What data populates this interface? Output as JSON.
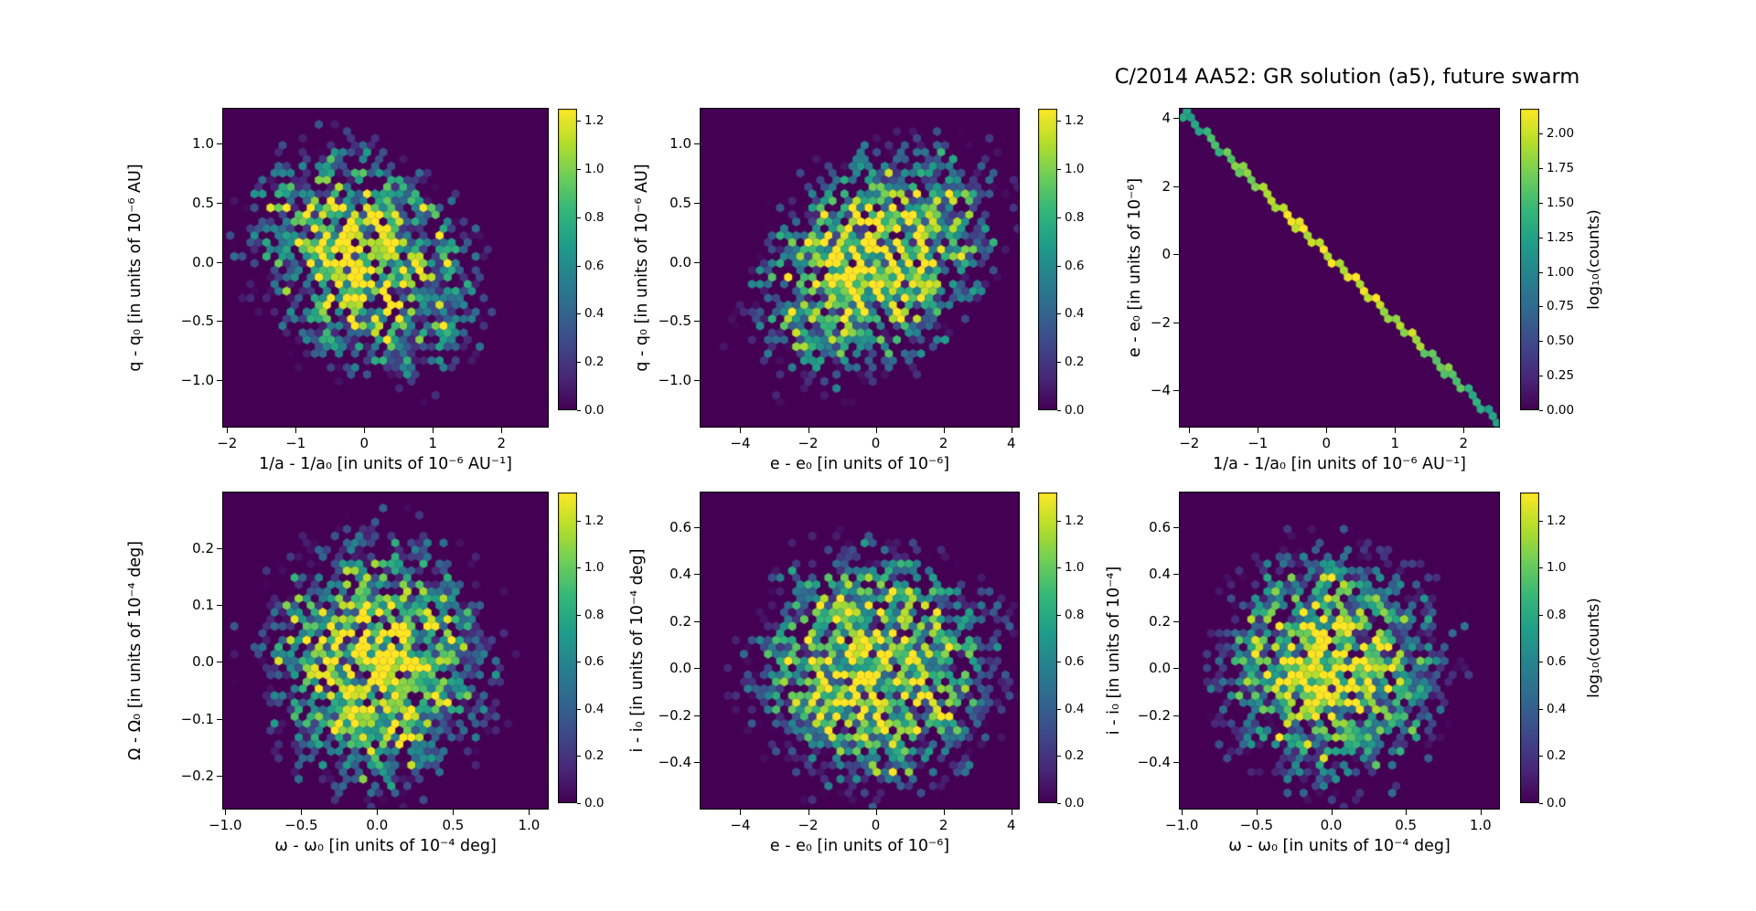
{
  "title": "C/2014 AA52: GR solution (a5), future swarm",
  "colors": {
    "background": "#ffffff",
    "hex_zero_background": "#440154",
    "frame": "#000000",
    "colormap": "viridis",
    "viridis_stops": [
      "#440154",
      "#482878",
      "#3e4989",
      "#31688e",
      "#26828e",
      "#1f9e89",
      "#35b779",
      "#6ece58",
      "#b5de2b",
      "#fde725"
    ]
  },
  "chart_data": [
    {
      "type": "hexbin",
      "xlabel": "1/a - 1/a₀ [in units of 10⁻⁶ AU⁻¹]",
      "ylabel": "q - q₀ [in units of 10⁻⁶ AU]",
      "xlim": [
        -2.07,
        2.69
      ],
      "ylim": [
        -1.4,
        1.3
      ],
      "xticks": {
        "values": [
          -2,
          -1,
          0,
          1,
          2
        ],
        "labels": [
          "−2",
          "−1",
          "0",
          "1",
          "2"
        ]
      },
      "yticks": {
        "values": [
          1.0,
          0.5,
          0.0,
          -0.5,
          -1.0
        ],
        "labels": [
          "1.0",
          "0.5",
          "0.0",
          "−0.5",
          "−1.0"
        ]
      },
      "colorbar": {
        "vmax": 1.25,
        "tick_values": [
          1.2,
          1.0,
          0.8,
          0.6,
          0.4,
          0.2,
          0.0
        ],
        "tick_labels": [
          "1.2",
          "1.0",
          "0.8",
          "0.6",
          "0.4",
          "0.2",
          "0.0"
        ],
        "label": ""
      },
      "distribution": {
        "kind": "gaussian",
        "cx": 0,
        "cy": 0,
        "sx": 0.72,
        "sy": 0.42,
        "rho": -0.28,
        "peak_log10": 1.2,
        "seed": 7
      }
    },
    {
      "type": "hexbin",
      "xlabel": "e - e₀ [in units of 10⁻⁶]",
      "ylabel": "q - q₀ [in units of 10⁻⁶ AU]",
      "xlim": [
        -5.2,
        4.25
      ],
      "ylim": [
        -1.4,
        1.3
      ],
      "xticks": {
        "values": [
          -4,
          -2,
          0,
          2,
          4
        ],
        "labels": [
          "−4",
          "−2",
          "0",
          "2",
          "4"
        ]
      },
      "yticks": {
        "values": [
          1.0,
          0.5,
          0.0,
          -0.5,
          -1.0
        ],
        "labels": [
          "1.0",
          "0.5",
          "0.0",
          "−0.5",
          "−1.0"
        ]
      },
      "colorbar": {
        "vmax": 1.25,
        "tick_values": [
          1.2,
          1.0,
          0.8,
          0.6,
          0.4,
          0.2,
          0.0
        ],
        "tick_labels": [
          "1.2",
          "1.0",
          "0.8",
          "0.6",
          "0.4",
          "0.2",
          "0.0"
        ],
        "label": ""
      },
      "distribution": {
        "kind": "gaussian",
        "cx": 0,
        "cy": 0,
        "sx": 1.55,
        "sy": 0.42,
        "rho": 0.35,
        "peak_log10": 1.2,
        "seed": 21
      }
    },
    {
      "type": "hexbin",
      "xlabel": "1/a - 1/a₀ [in units of 10⁻⁶ AU⁻¹]",
      "ylabel": "e - e₀ [in units of 10⁻⁶]",
      "xlim": [
        -2.15,
        2.53
      ],
      "ylim": [
        -5.1,
        4.3
      ],
      "xticks": {
        "values": [
          -2,
          -1,
          0,
          1,
          2
        ],
        "labels": [
          "−2",
          "−1",
          "0",
          "1",
          "2"
        ]
      },
      "yticks": {
        "values": [
          4,
          2,
          0,
          -2,
          -4
        ],
        "labels": [
          "4",
          "2",
          "0",
          "−2",
          "−4"
        ]
      },
      "colorbar": {
        "vmax": 2.18,
        "tick_values": [
          2.0,
          1.75,
          1.5,
          1.25,
          1.0,
          0.75,
          0.5,
          0.25,
          0.0
        ],
        "tick_labels": [
          "2.00",
          "1.75",
          "1.50",
          "1.25",
          "1.00",
          "0.75",
          "0.50",
          "0.25",
          "0.00"
        ],
        "label": "log₁₀(counts)"
      },
      "distribution": {
        "kind": "line",
        "slope": -2.0,
        "intercept": 0,
        "peak_log10": 2.1,
        "seed": 3
      }
    },
    {
      "type": "hexbin",
      "xlabel": "ω - ω₀ [in units of 10⁻⁴ deg]",
      "ylabel": "Ω - Ω₀ [in units of 10⁻⁴ deg]",
      "xlim": [
        -1.02,
        1.13
      ],
      "ylim": [
        -0.26,
        0.3
      ],
      "xticks": {
        "values": [
          -1.0,
          -0.5,
          0.0,
          0.5,
          1.0
        ],
        "labels": [
          "−1.0",
          "−0.5",
          "0.0",
          "0.5",
          "1.0"
        ]
      },
      "yticks": {
        "values": [
          0.2,
          0.1,
          0.0,
          -0.1,
          -0.2
        ],
        "labels": [
          "0.2",
          "0.1",
          "0.0",
          "−0.1",
          "−0.2"
        ]
      },
      "colorbar": {
        "vmax": 1.32,
        "tick_values": [
          1.2,
          1.0,
          0.8,
          0.6,
          0.4,
          0.2,
          0.0
        ],
        "tick_labels": [
          "1.2",
          "1.0",
          "0.8",
          "0.6",
          "0.4",
          "0.2",
          "0.0"
        ],
        "label": ""
      },
      "distribution": {
        "kind": "gaussian",
        "cx": 0,
        "cy": 0,
        "sx": 0.32,
        "sy": 0.095,
        "rho": 0.0,
        "peak_log10": 1.25,
        "seed": 11
      }
    },
    {
      "type": "hexbin",
      "xlabel": "e - e₀ [in units of 10⁻⁶]",
      "ylabel": "i - i₀ [in units of 10⁻⁴ deg]",
      "xlim": [
        -5.2,
        4.25
      ],
      "ylim": [
        -0.6,
        0.75
      ],
      "xticks": {
        "values": [
          -4,
          -2,
          0,
          2,
          4
        ],
        "labels": [
          "−4",
          "−2",
          "0",
          "2",
          "4"
        ]
      },
      "yticks": {
        "values": [
          0.6,
          0.4,
          0.2,
          0.0,
          -0.2,
          -0.4
        ],
        "labels": [
          "0.6",
          "0.4",
          "0.2",
          "0.0",
          "−0.2",
          "−0.4"
        ]
      },
      "colorbar": {
        "vmax": 1.32,
        "tick_values": [
          1.2,
          1.0,
          0.8,
          0.6,
          0.4,
          0.2,
          0.0
        ],
        "tick_labels": [
          "1.2",
          "1.0",
          "0.8",
          "0.6",
          "0.4",
          "0.2",
          "0.0"
        ],
        "label": ""
      },
      "distribution": {
        "kind": "gaussian",
        "cx": 0,
        "cy": 0,
        "sx": 1.55,
        "sy": 0.215,
        "rho": 0.0,
        "peak_log10": 1.25,
        "seed": 5
      }
    },
    {
      "type": "hexbin",
      "xlabel": "ω - ω₀ [in units of 10⁻⁴ deg]",
      "ylabel": "i - i₀ [in units of 10⁻⁴]",
      "xlim": [
        -1.02,
        1.13
      ],
      "ylim": [
        -0.6,
        0.75
      ],
      "xticks": {
        "values": [
          -1.0,
          -0.5,
          0.0,
          0.5,
          1.0
        ],
        "labels": [
          "−1.0",
          "−0.5",
          "0.0",
          "0.5",
          "1.0"
        ]
      },
      "yticks": {
        "values": [
          0.6,
          0.4,
          0.2,
          0.0,
          -0.2,
          -0.4
        ],
        "labels": [
          "0.6",
          "0.4",
          "0.2",
          "0.0",
          "−0.2",
          "−0.4"
        ]
      },
      "colorbar": {
        "vmax": 1.32,
        "tick_values": [
          1.2,
          1.0,
          0.8,
          0.6,
          0.4,
          0.2,
          0.0
        ],
        "tick_labels": [
          "1.2",
          "1.0",
          "0.8",
          "0.6",
          "0.4",
          "0.2",
          "0.0"
        ],
        "label": "log₁₀(counts)"
      },
      "distribution": {
        "kind": "gaussian",
        "cx": 0,
        "cy": 0,
        "sx": 0.33,
        "sy": 0.21,
        "rho": 0.0,
        "peak_log10": 1.25,
        "seed": 13
      }
    }
  ]
}
